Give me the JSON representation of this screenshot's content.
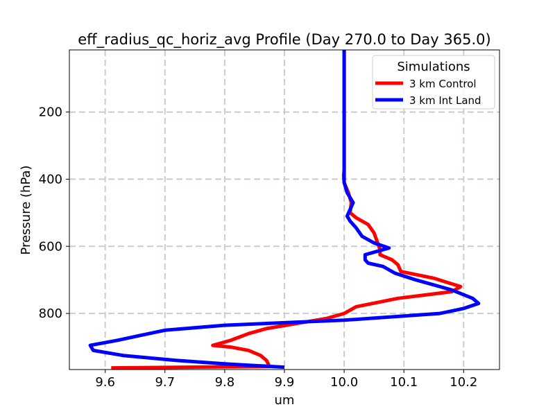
{
  "chart_data": {
    "type": "line",
    "title": "eff_radius_qc_horiz_avg Profile (Day 270.0 to Day 365.0)",
    "xlabel": "um",
    "ylabel": "Pressure (hPa)",
    "xlim": [
      9.54,
      10.26
    ],
    "ylim": [
      967,
      15
    ],
    "y_inverted": true,
    "x_ticks": [
      9.6,
      9.7,
      9.8,
      9.9,
      10.0,
      10.1,
      10.2
    ],
    "x_tick_labels": [
      "9.6",
      "9.7",
      "9.8",
      "9.9",
      "10.0",
      "10.1",
      "10.2"
    ],
    "y_ticks": [
      200,
      400,
      600,
      800
    ],
    "y_tick_labels": [
      "200",
      "400",
      "600",
      "800"
    ],
    "grid": true,
    "legend": {
      "title": "Simulations",
      "position": "top-right"
    },
    "series": [
      {
        "name": "3 km Control",
        "color": "#ff0000",
        "points": [
          [
            10.0,
            15
          ],
          [
            10.0,
            100
          ],
          [
            10.0,
            200
          ],
          [
            10.0,
            300
          ],
          [
            10.0,
            370
          ],
          [
            9.999,
            390
          ],
          [
            10.0,
            410
          ],
          [
            10.007,
            440
          ],
          [
            10.012,
            470
          ],
          [
            10.01,
            500
          ],
          [
            10.02,
            515
          ],
          [
            10.04,
            535
          ],
          [
            10.05,
            560
          ],
          [
            10.055,
            585
          ],
          [
            10.06,
            610
          ],
          [
            10.06,
            625
          ],
          [
            10.08,
            640
          ],
          [
            10.09,
            655
          ],
          [
            10.095,
            675
          ],
          [
            10.15,
            695
          ],
          [
            10.195,
            720
          ],
          [
            10.18,
            735
          ],
          [
            10.09,
            755
          ],
          [
            10.02,
            780
          ],
          [
            10.0,
            800
          ],
          [
            9.97,
            815
          ],
          [
            9.92,
            830
          ],
          [
            9.87,
            845
          ],
          [
            9.84,
            860
          ],
          [
            9.81,
            880
          ],
          [
            9.78,
            895
          ],
          [
            9.81,
            900
          ],
          [
            9.84,
            910
          ],
          [
            9.86,
            925
          ],
          [
            9.87,
            940
          ],
          [
            9.875,
            958
          ],
          [
            9.61,
            962
          ]
        ]
      },
      {
        "name": "3 km Int Land",
        "color": "#0000ff",
        "points": [
          [
            10.0,
            15
          ],
          [
            10.0,
            100
          ],
          [
            10.0,
            200
          ],
          [
            10.0,
            300
          ],
          [
            10.0,
            410
          ],
          [
            10.005,
            440
          ],
          [
            10.015,
            470
          ],
          [
            10.01,
            490
          ],
          [
            10.005,
            510
          ],
          [
            10.01,
            525
          ],
          [
            10.02,
            545
          ],
          [
            10.03,
            570
          ],
          [
            10.05,
            590
          ],
          [
            10.075,
            605
          ],
          [
            10.035,
            625
          ],
          [
            10.035,
            640
          ],
          [
            10.04,
            650
          ],
          [
            10.065,
            660
          ],
          [
            10.085,
            680
          ],
          [
            10.12,
            700
          ],
          [
            10.18,
            730
          ],
          [
            10.215,
            755
          ],
          [
            10.225,
            770
          ],
          [
            10.2,
            785
          ],
          [
            10.16,
            800
          ],
          [
            10.0,
            820
          ],
          [
            9.8,
            835
          ],
          [
            9.7,
            850
          ],
          [
            9.66,
            865
          ],
          [
            9.62,
            880
          ],
          [
            9.575,
            895
          ],
          [
            9.58,
            910
          ],
          [
            9.63,
            925
          ],
          [
            9.72,
            940
          ],
          [
            9.8,
            950
          ],
          [
            9.85,
            955
          ],
          [
            9.9,
            960
          ]
        ]
      }
    ]
  }
}
